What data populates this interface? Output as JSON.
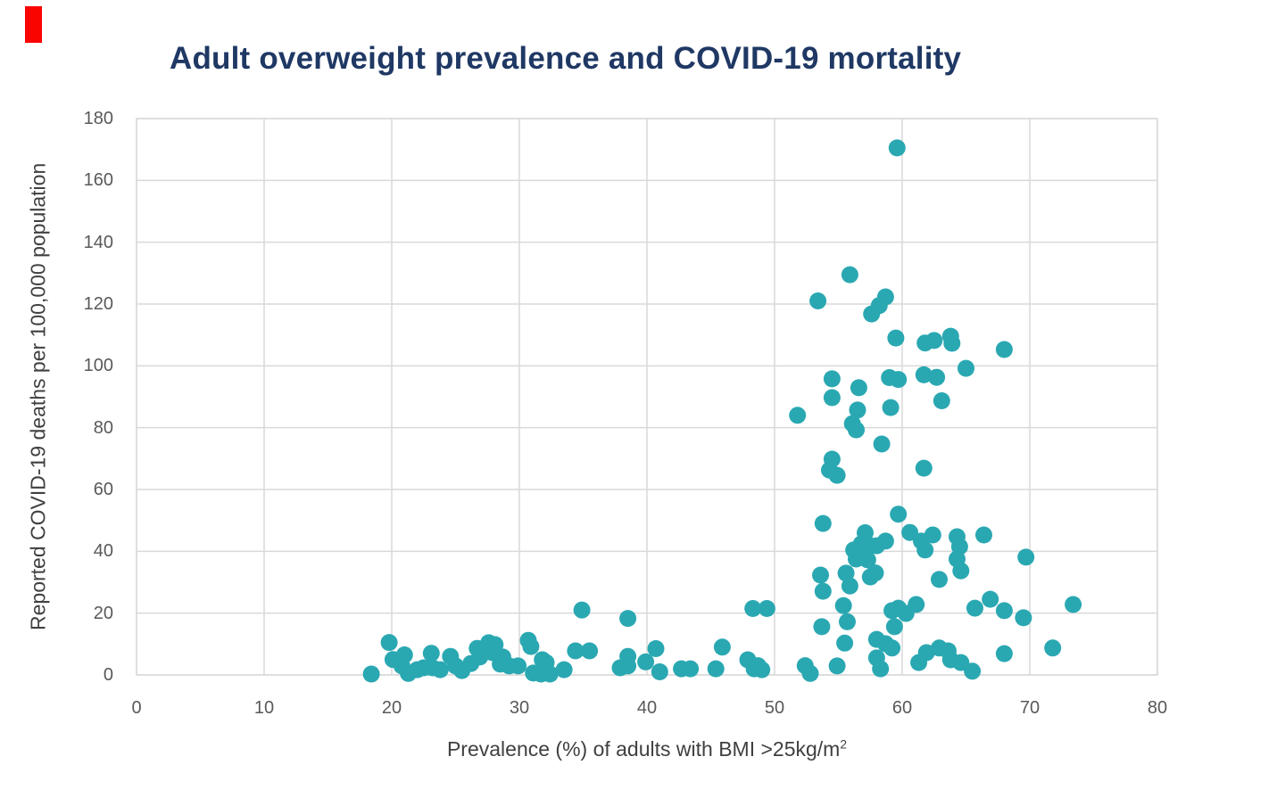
{
  "colors": {
    "title": "#1f3864",
    "point": "#2aa8b2",
    "grid": "#d9d9d9",
    "tick": "#595959",
    "axis_label": "#404040",
    "corner_mark": "#fa0400"
  },
  "chart_data": {
    "type": "scatter",
    "title": "Adult overweight prevalence and COVID-19 mortality",
    "xlabel": "Prevalence (%) of adults with BMI >25kg/m²",
    "xlabel_base": "Prevalence (%) of adults with BMI >25kg/m",
    "xlabel_sup": "2",
    "ylabel": "Reported COVID-19 deaths per 100,000 population",
    "xlim": [
      0,
      80
    ],
    "ylim": [
      0,
      180
    ],
    "x_ticks": [
      0,
      10,
      20,
      30,
      40,
      50,
      60,
      70,
      80
    ],
    "y_ticks": [
      0,
      20,
      40,
      60,
      80,
      100,
      120,
      140,
      160,
      180
    ],
    "grid": true,
    "legend": "none",
    "marker_radius_px": 9.5,
    "points": [
      [
        18.4,
        0.3
      ],
      [
        19.8,
        10.5
      ],
      [
        20.1,
        5.0
      ],
      [
        20.8,
        2.9
      ],
      [
        21.0,
        6.5
      ],
      [
        21.3,
        0.5
      ],
      [
        22.0,
        1.7
      ],
      [
        22.5,
        2.3
      ],
      [
        23.1,
        7.0
      ],
      [
        23.2,
        2.3
      ],
      [
        23.8,
        1.7
      ],
      [
        24.6,
        6.0
      ],
      [
        25.0,
        2.9
      ],
      [
        25.5,
        1.4
      ],
      [
        26.2,
        3.7
      ],
      [
        26.7,
        8.6
      ],
      [
        26.9,
        5.8
      ],
      [
        27.6,
        10.4
      ],
      [
        27.9,
        7.2
      ],
      [
        28.1,
        9.8
      ],
      [
        28.5,
        5.2
      ],
      [
        28.5,
        3.5
      ],
      [
        28.7,
        5.8
      ],
      [
        29.2,
        2.9
      ],
      [
        29.9,
        2.9
      ],
      [
        30.7,
        11.2
      ],
      [
        30.9,
        9.2
      ],
      [
        31.1,
        0.6
      ],
      [
        31.7,
        0.3
      ],
      [
        31.8,
        4.9
      ],
      [
        32.1,
        4.0
      ],
      [
        32.4,
        0.3
      ],
      [
        33.5,
        1.7
      ],
      [
        34.4,
        7.8
      ],
      [
        34.9,
        21.0
      ],
      [
        35.5,
        7.8
      ],
      [
        37.9,
        2.3
      ],
      [
        38.5,
        18.3
      ],
      [
        38.5,
        6.0
      ],
      [
        38.5,
        2.9
      ],
      [
        39.9,
        4.2
      ],
      [
        40.7,
        8.5
      ],
      [
        41.0,
        1.0
      ],
      [
        42.7,
        2.0
      ],
      [
        43.4,
        2.0
      ],
      [
        45.4,
        2.0
      ],
      [
        45.9,
        9.0
      ],
      [
        47.9,
        4.9
      ],
      [
        48.3,
        21.5
      ],
      [
        48.4,
        2.0
      ],
      [
        48.7,
        3.0
      ],
      [
        49.0,
        1.7
      ],
      [
        49.4,
        21.5
      ],
      [
        51.8,
        84.0
      ],
      [
        52.4,
        3.0
      ],
      [
        52.8,
        0.5
      ],
      [
        53.4,
        121.0
      ],
      [
        53.6,
        32.3
      ],
      [
        53.7,
        15.6
      ],
      [
        53.8,
        49.0
      ],
      [
        53.8,
        27.1
      ],
      [
        54.3,
        66.3
      ],
      [
        54.5,
        95.8
      ],
      [
        54.5,
        89.7
      ],
      [
        54.5,
        69.8
      ],
      [
        54.9,
        64.6
      ],
      [
        54.9,
        2.9
      ],
      [
        55.4,
        22.4
      ],
      [
        55.5,
        10.3
      ],
      [
        55.6,
        32.9
      ],
      [
        55.7,
        17.2
      ],
      [
        55.9,
        28.8
      ],
      [
        55.9,
        129.5
      ],
      [
        56.1,
        81.3
      ],
      [
        56.2,
        40.4
      ],
      [
        56.4,
        37.5
      ],
      [
        56.4,
        79.3
      ],
      [
        56.5,
        85.7
      ],
      [
        56.6,
        92.9
      ],
      [
        56.6,
        39.0
      ],
      [
        56.8,
        42.4
      ],
      [
        57.1,
        46.0
      ],
      [
        57.3,
        37.2
      ],
      [
        57.5,
        41.8
      ],
      [
        57.5,
        31.7
      ],
      [
        57.6,
        116.8
      ],
      [
        57.9,
        33.0
      ],
      [
        58.0,
        41.8
      ],
      [
        58.0,
        11.5
      ],
      [
        58.0,
        5.5
      ],
      [
        58.2,
        119.5
      ],
      [
        58.3,
        2.0
      ],
      [
        58.4,
        74.7
      ],
      [
        58.7,
        122.3
      ],
      [
        58.7,
        43.3
      ],
      [
        58.7,
        10.1
      ],
      [
        59.0,
        96.2
      ],
      [
        59.1,
        86.5
      ],
      [
        59.2,
        20.8
      ],
      [
        59.2,
        8.7
      ],
      [
        59.4,
        15.6
      ],
      [
        59.5,
        109.0
      ],
      [
        59.6,
        170.5
      ],
      [
        59.7,
        95.6
      ],
      [
        59.7,
        52.0
      ],
      [
        59.7,
        21.6
      ],
      [
        60.3,
        19.9
      ],
      [
        60.6,
        46.1
      ],
      [
        61.1,
        22.8
      ],
      [
        61.3,
        4.0
      ],
      [
        61.5,
        43.3
      ],
      [
        61.7,
        97.1
      ],
      [
        61.7,
        66.9
      ],
      [
        61.8,
        107.4
      ],
      [
        61.8,
        40.4
      ],
      [
        61.9,
        7.2
      ],
      [
        62.4,
        45.3
      ],
      [
        62.5,
        108.2
      ],
      [
        62.7,
        96.3
      ],
      [
        62.9,
        30.9
      ],
      [
        62.9,
        8.7
      ],
      [
        63.1,
        88.7
      ],
      [
        63.6,
        7.8
      ],
      [
        63.8,
        109.6
      ],
      [
        63.8,
        4.9
      ],
      [
        63.9,
        107.3
      ],
      [
        64.3,
        44.7
      ],
      [
        64.3,
        37.5
      ],
      [
        64.5,
        41.5
      ],
      [
        64.6,
        33.7
      ],
      [
        64.6,
        4.0
      ],
      [
        65.0,
        99.2
      ],
      [
        65.5,
        1.2
      ],
      [
        65.7,
        21.6
      ],
      [
        66.4,
        45.3
      ],
      [
        66.9,
        24.5
      ],
      [
        68.0,
        105.3
      ],
      [
        68.0,
        20.8
      ],
      [
        68.0,
        6.9
      ],
      [
        69.5,
        18.5
      ],
      [
        69.7,
        38.1
      ],
      [
        71.8,
        8.7
      ],
      [
        73.4,
        22.8
      ]
    ]
  }
}
